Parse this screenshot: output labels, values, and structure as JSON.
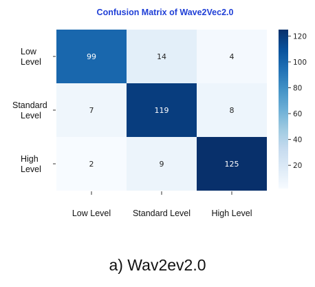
{
  "chart_data": {
    "type": "heatmap",
    "title": "Confusion Matrix of Wave2Vec2.0",
    "title_color": "#1f3fd6",
    "rows": [
      "Low Level",
      "Standard Level",
      "High Level"
    ],
    "row_tick_lines": [
      [
        "Low",
        "Level"
      ],
      [
        "Standard",
        "Level"
      ],
      [
        "High",
        "Level"
      ]
    ],
    "columns": [
      "Low Level",
      "Standard Level",
      "High Level"
    ],
    "values": [
      [
        99,
        14,
        4
      ],
      [
        7,
        119,
        8
      ],
      [
        2,
        9,
        125
      ]
    ],
    "colormap": "Blues",
    "colorbar": {
      "ticks": [
        20,
        40,
        60,
        80,
        100,
        120
      ],
      "range": [
        2,
        125
      ]
    },
    "grid": false,
    "legend": "colorbar-right"
  },
  "caption": "a) Wav2ev2.0"
}
